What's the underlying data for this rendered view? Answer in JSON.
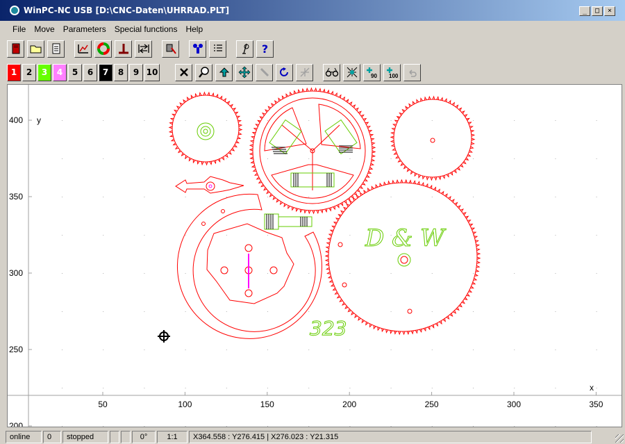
{
  "window": {
    "title": "WinPC-NC USB [D:\\CNC-Daten\\UHRRAD.PLT]",
    "buttons": [
      "_",
      "□",
      "×"
    ]
  },
  "menu": [
    "File",
    "Move",
    "Parameters",
    "Special functions",
    "Help"
  ],
  "layers": [
    {
      "label": "1",
      "bg": "#ff0000",
      "fg": "#ffffff"
    },
    {
      "label": "2",
      "bg": "#d4d0c8",
      "fg": "#000000"
    },
    {
      "label": "3",
      "bg": "#66ff00",
      "fg": "#ffffff"
    },
    {
      "label": "4",
      "bg": "#ff80ff",
      "fg": "#ffffff"
    },
    {
      "label": "5",
      "bg": "#d4d0c8",
      "fg": "#000000"
    },
    {
      "label": "6",
      "bg": "#d4d0c8",
      "fg": "#000000"
    },
    {
      "label": "7",
      "bg": "#000000",
      "fg": "#ffffff"
    },
    {
      "label": "8",
      "bg": "#d4d0c8",
      "fg": "#000000"
    },
    {
      "label": "9",
      "bg": "#d4d0c8",
      "fg": "#000000"
    },
    {
      "label": "10",
      "bg": "#d4d0c8",
      "fg": "#000000"
    }
  ],
  "toolbar_icons": {
    "main": [
      "exit-icon",
      "open-folder-icon",
      "file-info-icon",
      "plot-icon",
      "color-wheel-icon",
      "zero-point-icon",
      "move-reference-icon",
      "tool-icon",
      "filter-icon",
      "list-icon",
      "manual-icon",
      "help-icon"
    ],
    "view": [
      "zoom-reset-icon",
      "zoom-icon",
      "home-arrow-icon",
      "move-cross-icon",
      "laser-icon",
      "rotate-icon",
      "mirror-icon",
      "preview-icon",
      "center-icon",
      "rotate-90-icon",
      "scale-100-icon",
      "undo-icon"
    ]
  },
  "toolbar_labels": {
    "help": "?",
    "rotate90": "90",
    "scale100": "100"
  },
  "axes": {
    "x_label": "x",
    "y_label": "y",
    "x_ticks": [
      "50",
      "100",
      "150",
      "200",
      "250",
      "300",
      "350"
    ],
    "y_ticks": [
      "400",
      "350",
      "300",
      "250",
      "200"
    ]
  },
  "drawing": {
    "initials": "D & W",
    "number": "323",
    "colors": {
      "red": "#ff0000",
      "green": "#66cc00",
      "magenta": "#ff00ff"
    }
  },
  "status": {
    "connection": "online",
    "count": "0",
    "state": "stopped",
    "angle": "0°",
    "scale": "1:1",
    "coords": "X364.558 : Y276.415  |  X276.023 : Y21.315"
  }
}
